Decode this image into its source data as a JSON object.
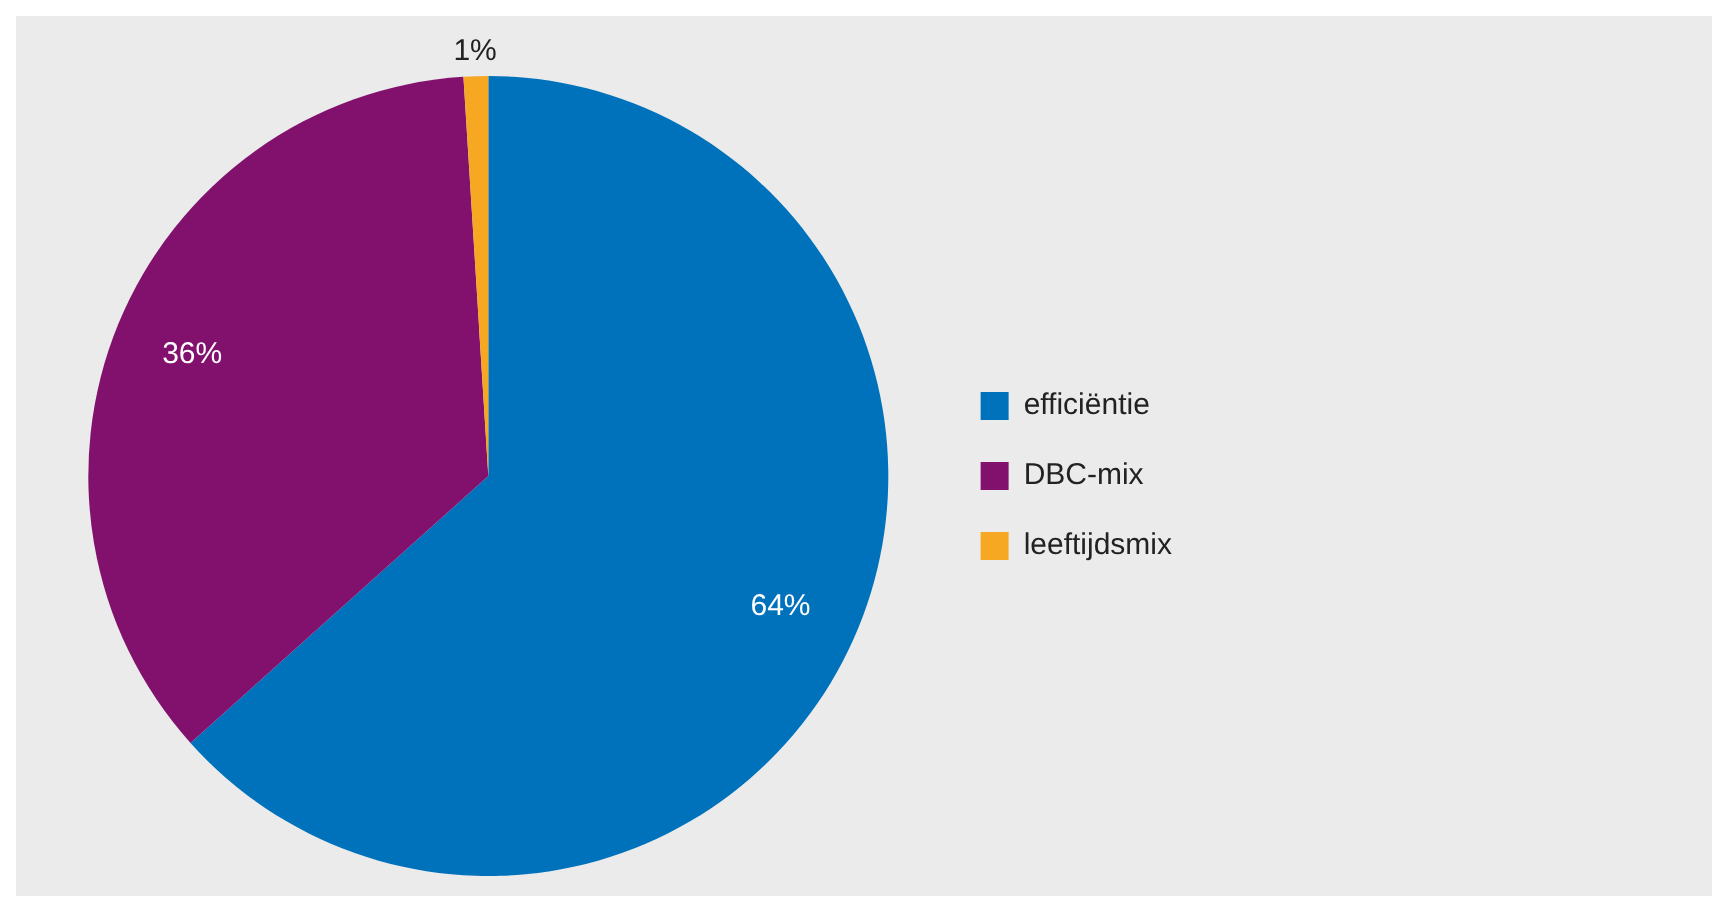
{
  "chart_data": {
    "type": "pie",
    "categories": [
      "efficiëntie",
      "DBC-mix",
      "leeftijdsmix"
    ],
    "values": [
      64,
      36,
      1
    ],
    "colors": [
      "#0072bc",
      "#82116e",
      "#f7a823"
    ],
    "value_labels": [
      "64%",
      "36%",
      "1%"
    ],
    "legend": "right"
  }
}
